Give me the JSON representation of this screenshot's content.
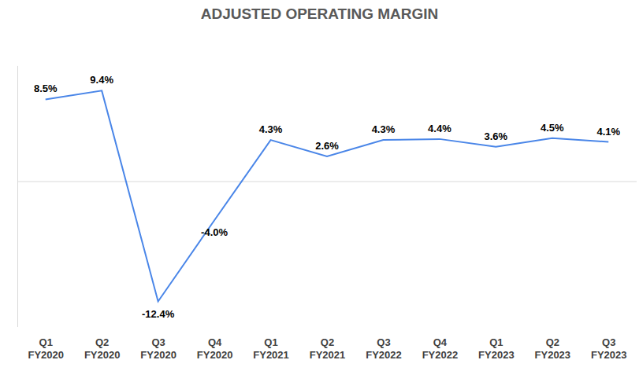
{
  "chart_data": {
    "type": "line",
    "title": "ADJUSTED OPERATING MARGIN",
    "categories": [
      "Q1\nFY2020",
      "Q2\nFY2020",
      "Q3\nFY2020",
      "Q4\nFY2020",
      "Q1\nFY2021",
      "Q2\nFY2021",
      "Q3\nFY2022",
      "Q4\nFY2022",
      "Q1\nFY2023",
      "Q2\nFY2023",
      "Q3\nFY2023"
    ],
    "values": [
      8.5,
      9.4,
      -12.4,
      -4.0,
      4.3,
      2.6,
      4.3,
      4.4,
      3.6,
      4.5,
      4.1
    ],
    "value_labels": [
      "8.5%",
      "9.4%",
      "-12.4%",
      "-4.0%",
      "4.3%",
      "2.6%",
      "4.3%",
      "4.4%",
      "3.6%",
      "4.5%",
      "4.1%"
    ],
    "color": "#4a86e8",
    "ylim": [
      -15,
      12
    ],
    "yticks": [
      0
    ],
    "grid": true,
    "tick_labels": "x",
    "data_labels": true
  }
}
